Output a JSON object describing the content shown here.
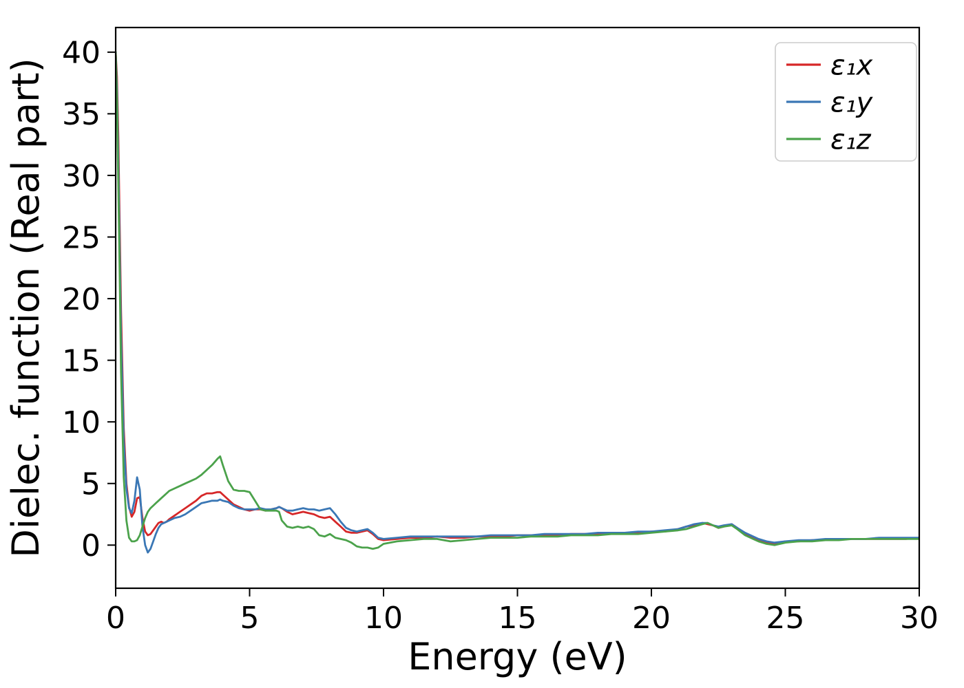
{
  "chart_data": {
    "type": "line",
    "title": "",
    "xlabel": "Energy (eV)",
    "ylabel": "Dielec. function (Real part)",
    "xlim": [
      0,
      30
    ],
    "ylim": [
      -3.5,
      42
    ],
    "xticks": [
      0,
      5,
      10,
      15,
      20,
      25,
      30
    ],
    "yticks": [
      0,
      5,
      10,
      15,
      20,
      25,
      30,
      35,
      40
    ],
    "grid": false,
    "legend": {
      "position": "upper right",
      "border_color": "#cccccc",
      "background": "#ffffff"
    },
    "x": [
      0,
      0.05,
      0.1,
      0.15,
      0.2,
      0.3,
      0.4,
      0.5,
      0.6,
      0.7,
      0.8,
      0.9,
      1.0,
      1.1,
      1.2,
      1.3,
      1.4,
      1.5,
      1.6,
      1.7,
      1.8,
      1.9,
      2.0,
      2.2,
      2.4,
      2.6,
      2.8,
      3.0,
      3.2,
      3.4,
      3.6,
      3.8,
      3.9,
      4.0,
      4.2,
      4.4,
      4.6,
      4.8,
      5.0,
      5.2,
      5.4,
      5.6,
      5.8,
      6.0,
      6.1,
      6.2,
      6.4,
      6.6,
      6.8,
      7.0,
      7.2,
      7.4,
      7.6,
      7.8,
      8.0,
      8.2,
      8.4,
      8.6,
      8.8,
      9.0,
      9.2,
      9.4,
      9.6,
      9.8,
      10.0,
      10.5,
      11.0,
      11.5,
      12.0,
      12.5,
      13.0,
      13.5,
      14.0,
      14.5,
      15.0,
      15.5,
      16.0,
      16.5,
      17.0,
      17.5,
      18.0,
      18.5,
      19.0,
      19.5,
      20.0,
      20.5,
      21.0,
      21.3,
      21.6,
      21.9,
      22.1,
      22.3,
      22.5,
      22.7,
      23.0,
      23.2,
      23.5,
      23.8,
      24.0,
      24.3,
      24.6,
      25.0,
      25.5,
      26.0,
      26.5,
      27.0,
      27.5,
      28.0,
      28.5,
      29.0,
      29.5,
      30.0
    ],
    "series": [
      {
        "name": "ε₁x",
        "color": "#d62728",
        "values": [
          40,
          38,
          33,
          26,
          19,
          9.5,
          5.0,
          3.1,
          2.3,
          2.7,
          3.8,
          3.9,
          2.2,
          1.1,
          0.8,
          0.9,
          1.2,
          1.5,
          1.8,
          1.9,
          1.8,
          1.9,
          2.1,
          2.4,
          2.7,
          3.0,
          3.3,
          3.6,
          4.0,
          4.2,
          4.2,
          4.3,
          4.3,
          4.1,
          3.7,
          3.3,
          3.1,
          2.9,
          2.8,
          2.9,
          2.9,
          2.8,
          2.9,
          3.0,
          3.1,
          3.0,
          2.7,
          2.5,
          2.6,
          2.7,
          2.6,
          2.5,
          2.3,
          2.2,
          2.3,
          1.9,
          1.5,
          1.1,
          1.0,
          1.0,
          1.1,
          1.2,
          0.9,
          0.5,
          0.4,
          0.5,
          0.6,
          0.6,
          0.7,
          0.6,
          0.6,
          0.7,
          0.7,
          0.7,
          0.8,
          0.8,
          0.8,
          0.8,
          0.9,
          0.9,
          0.9,
          1.0,
          1.0,
          1.0,
          1.1,
          1.1,
          1.3,
          1.5,
          1.6,
          1.8,
          1.7,
          1.6,
          1.4,
          1.5,
          1.7,
          1.4,
          0.9,
          0.6,
          0.4,
          0.2,
          0.1,
          0.3,
          0.3,
          0.4,
          0.4,
          0.5,
          0.5,
          0.5,
          0.5,
          0.5,
          0.5,
          0.6
        ]
      },
      {
        "name": "ε₁y",
        "color": "#3a77b5",
        "values": [
          40,
          37,
          31,
          24,
          17,
          8.5,
          4.6,
          3.0,
          2.6,
          3.6,
          5.5,
          4.5,
          1.5,
          0.0,
          -0.6,
          -0.3,
          0.3,
          0.9,
          1.4,
          1.7,
          1.8,
          1.9,
          2.0,
          2.2,
          2.3,
          2.5,
          2.8,
          3.1,
          3.4,
          3.5,
          3.6,
          3.6,
          3.7,
          3.6,
          3.5,
          3.2,
          3.0,
          2.9,
          2.9,
          2.9,
          3.0,
          2.9,
          2.9,
          3.0,
          3.1,
          3.0,
          2.8,
          2.8,
          2.9,
          3.0,
          2.9,
          2.9,
          2.8,
          2.9,
          3.0,
          2.5,
          1.9,
          1.4,
          1.2,
          1.1,
          1.2,
          1.3,
          1.0,
          0.6,
          0.5,
          0.6,
          0.7,
          0.7,
          0.7,
          0.7,
          0.7,
          0.7,
          0.8,
          0.8,
          0.8,
          0.8,
          0.9,
          0.9,
          0.9,
          0.9,
          1.0,
          1.0,
          1.0,
          1.1,
          1.1,
          1.2,
          1.3,
          1.5,
          1.7,
          1.8,
          1.8,
          1.6,
          1.5,
          1.6,
          1.7,
          1.4,
          1.0,
          0.7,
          0.5,
          0.3,
          0.2,
          0.3,
          0.4,
          0.4,
          0.5,
          0.5,
          0.5,
          0.5,
          0.6,
          0.6,
          0.6,
          0.6
        ]
      },
      {
        "name": "ε₁z",
        "color": "#4ba24b",
        "values": [
          40,
          36,
          29,
          22,
          14,
          5.5,
          2.0,
          0.6,
          0.3,
          0.3,
          0.4,
          0.8,
          1.5,
          2.2,
          2.7,
          3.0,
          3.2,
          3.4,
          3.6,
          3.8,
          4.0,
          4.2,
          4.4,
          4.6,
          4.8,
          5.0,
          5.2,
          5.4,
          5.7,
          6.1,
          6.5,
          7.0,
          7.2,
          6.5,
          5.2,
          4.5,
          4.4,
          4.4,
          4.3,
          3.6,
          2.9,
          2.8,
          2.8,
          2.8,
          2.7,
          2.0,
          1.5,
          1.4,
          1.5,
          1.4,
          1.5,
          1.3,
          0.8,
          0.7,
          0.9,
          0.6,
          0.5,
          0.4,
          0.2,
          -0.1,
          -0.2,
          -0.2,
          -0.3,
          -0.2,
          0.1,
          0.3,
          0.4,
          0.5,
          0.5,
          0.3,
          0.4,
          0.5,
          0.6,
          0.6,
          0.6,
          0.7,
          0.7,
          0.7,
          0.8,
          0.8,
          0.8,
          0.9,
          0.9,
          0.9,
          1.0,
          1.1,
          1.2,
          1.3,
          1.5,
          1.7,
          1.8,
          1.6,
          1.4,
          1.5,
          1.6,
          1.3,
          0.8,
          0.5,
          0.3,
          0.1,
          0.0,
          0.2,
          0.3,
          0.3,
          0.4,
          0.4,
          0.5,
          0.5,
          0.5,
          0.5,
          0.5,
          0.5
        ]
      }
    ]
  }
}
